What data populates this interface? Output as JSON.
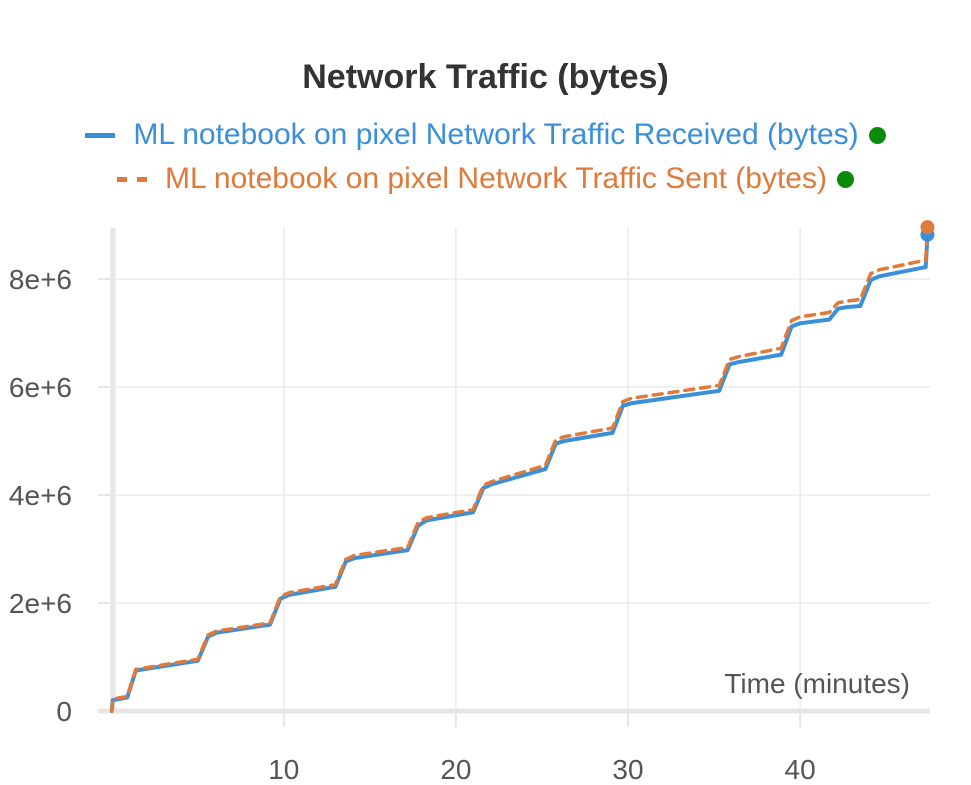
{
  "chart_data": {
    "type": "line",
    "title": "Network Traffic (bytes)",
    "xlabel": "Time (minutes)",
    "ylabel": "",
    "xlim": [
      0,
      47.6
    ],
    "ylim": [
      -150000,
      8800000
    ],
    "x_ticks": [
      10,
      20,
      30,
      40
    ],
    "x_tick_labels": [
      "10",
      "20",
      "30",
      "40"
    ],
    "y_ticks": [
      0,
      2000000,
      4000000,
      6000000,
      8000000
    ],
    "y_tick_labels": [
      "0",
      "2e+6",
      "4e+6",
      "6e+6",
      "8e+6"
    ],
    "grid": true,
    "legend_position": "top",
    "series": [
      {
        "name": "ML notebook on pixel Network Traffic Received (bytes)",
        "color": "#3a8fdb",
        "style": "solid",
        "points": [
          [
            0.0,
            0
          ],
          [
            0.05,
            200000
          ],
          [
            0.9,
            250000
          ],
          [
            1.4,
            750000
          ],
          [
            5.0,
            930000
          ],
          [
            5.6,
            1380000
          ],
          [
            6.1,
            1450000
          ],
          [
            9.2,
            1600000
          ],
          [
            9.8,
            2080000
          ],
          [
            10.3,
            2150000
          ],
          [
            13.0,
            2300000
          ],
          [
            13.6,
            2770000
          ],
          [
            14.1,
            2830000
          ],
          [
            17.2,
            2980000
          ],
          [
            17.8,
            3430000
          ],
          [
            18.3,
            3530000
          ],
          [
            21.0,
            3680000
          ],
          [
            21.6,
            4130000
          ],
          [
            22.1,
            4200000
          ],
          [
            25.2,
            4480000
          ],
          [
            25.8,
            4950000
          ],
          [
            26.3,
            5000000
          ],
          [
            29.1,
            5150000
          ],
          [
            29.7,
            5650000
          ],
          [
            30.2,
            5700000
          ],
          [
            35.3,
            5930000
          ],
          [
            35.9,
            6420000
          ],
          [
            36.4,
            6460000
          ],
          [
            38.9,
            6600000
          ],
          [
            39.5,
            7120000
          ],
          [
            40.0,
            7180000
          ],
          [
            41.7,
            7250000
          ],
          [
            42.2,
            7450000
          ],
          [
            42.7,
            7480000
          ],
          [
            43.5,
            7500000
          ],
          [
            44.1,
            7980000
          ],
          [
            44.6,
            8050000
          ],
          [
            47.3,
            8220000
          ],
          [
            47.4,
            8820000
          ]
        ],
        "end_marker": [
          47.4,
          8820000
        ]
      },
      {
        "name": "ML notebook on pixel Network Traffic Sent (bytes)",
        "color": "#e07a3a",
        "style": "dashed",
        "points": [
          [
            0.0,
            0
          ],
          [
            0.05,
            220000
          ],
          [
            0.9,
            270000
          ],
          [
            1.4,
            770000
          ],
          [
            5.0,
            960000
          ],
          [
            5.6,
            1410000
          ],
          [
            6.1,
            1480000
          ],
          [
            9.2,
            1630000
          ],
          [
            9.8,
            2120000
          ],
          [
            10.3,
            2190000
          ],
          [
            13.0,
            2340000
          ],
          [
            13.6,
            2810000
          ],
          [
            14.1,
            2880000
          ],
          [
            17.2,
            3030000
          ],
          [
            17.8,
            3490000
          ],
          [
            18.3,
            3580000
          ],
          [
            21.0,
            3730000
          ],
          [
            21.6,
            4180000
          ],
          [
            22.1,
            4250000
          ],
          [
            25.2,
            4550000
          ],
          [
            25.8,
            5020000
          ],
          [
            26.3,
            5080000
          ],
          [
            29.1,
            5240000
          ],
          [
            29.7,
            5730000
          ],
          [
            30.2,
            5790000
          ],
          [
            35.3,
            6030000
          ],
          [
            35.9,
            6510000
          ],
          [
            36.4,
            6560000
          ],
          [
            38.9,
            6720000
          ],
          [
            39.5,
            7230000
          ],
          [
            40.0,
            7300000
          ],
          [
            41.7,
            7380000
          ],
          [
            42.2,
            7560000
          ],
          [
            42.7,
            7590000
          ],
          [
            43.5,
            7620000
          ],
          [
            44.1,
            8100000
          ],
          [
            44.6,
            8170000
          ],
          [
            47.3,
            8350000
          ],
          [
            47.4,
            8960000
          ]
        ],
        "end_marker": [
          47.4,
          8960000
        ]
      }
    ]
  }
}
